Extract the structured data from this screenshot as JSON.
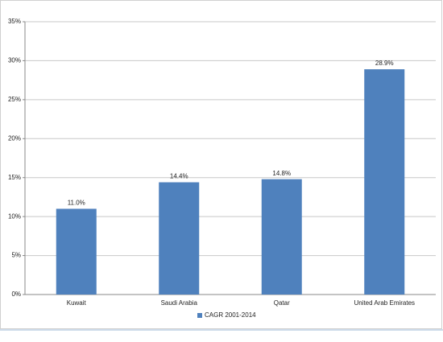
{
  "chart_data": {
    "type": "bar",
    "categories": [
      "Kuwait",
      "Saudi Arabia",
      "Qatar",
      "United Arab Emirates"
    ],
    "series": [
      {
        "name": "CAGR 2001-2014",
        "color": "#4f81bd",
        "values": [
          11.0,
          14.4,
          14.8,
          28.9
        ],
        "value_labels": [
          "11.0%",
          "14.4%",
          "14.8%",
          "28.9%"
        ]
      }
    ],
    "ylim": [
      0,
      35
    ],
    "yticks": [
      {
        "value": 0,
        "label": "0%"
      },
      {
        "value": 5,
        "label": "5%"
      },
      {
        "value": 10,
        "label": "10%"
      },
      {
        "value": 15,
        "label": "15%"
      },
      {
        "value": 20,
        "label": "20%"
      },
      {
        "value": 25,
        "label": "25%"
      },
      {
        "value": 30,
        "label": "30%"
      },
      {
        "value": 35,
        "label": "35%"
      }
    ],
    "grid": true,
    "legend": "bottom"
  }
}
